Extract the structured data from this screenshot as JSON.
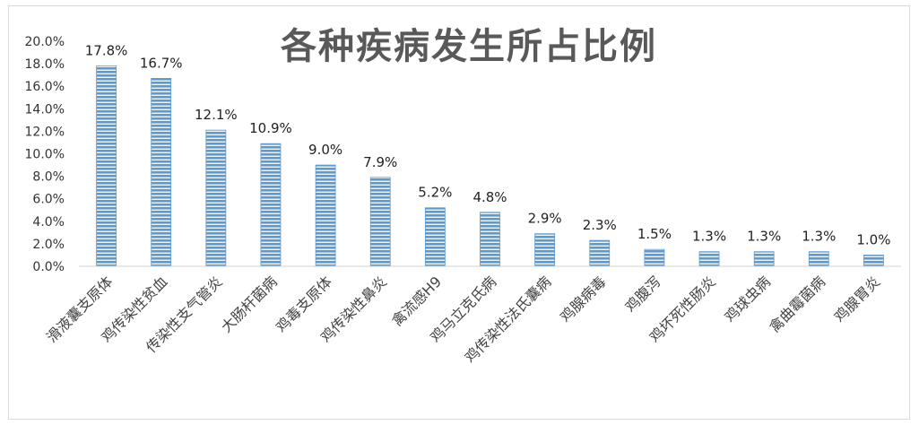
{
  "chart_data": {
    "type": "bar",
    "title": "各种疾病发生所占比例",
    "categories": [
      "滑液囊支原体",
      "鸡传染性贫血",
      "传染性支气管炎",
      "大肠杆菌病",
      "鸡毒支原体",
      "鸡传染性鼻炎",
      "禽流感H9",
      "鸡马立克氏病",
      "鸡传染性法氏囊病",
      "鸡腺病毒",
      "鸡腹泻",
      "鸡坏死性肠炎",
      "鸡球虫病",
      "禽曲霉菌病",
      "鸡腺胃炎"
    ],
    "values": [
      17.8,
      16.7,
      12.1,
      10.9,
      9.0,
      7.9,
      5.2,
      4.8,
      2.9,
      2.3,
      1.5,
      1.3,
      1.3,
      1.3,
      1.0
    ],
    "data_labels": [
      "17.8%",
      "16.7%",
      "12.1%",
      "10.9%",
      "9.0%",
      "7.9%",
      "5.2%",
      "4.8%",
      "2.9%",
      "2.3%",
      "1.5%",
      "1.3%",
      "1.3%",
      "1.3%",
      "1.0%"
    ],
    "y_ticks": [
      "0.0%",
      "2.0%",
      "4.0%",
      "6.0%",
      "8.0%",
      "10.0%",
      "12.0%",
      "14.0%",
      "16.0%",
      "18.0%",
      "20.0%"
    ],
    "ylim": [
      0,
      20
    ],
    "xlabel": "",
    "ylabel": "",
    "grid": false,
    "legend": "none",
    "bar_color": "#5b9bd5",
    "bar_stripe_color": "#ffffff"
  }
}
